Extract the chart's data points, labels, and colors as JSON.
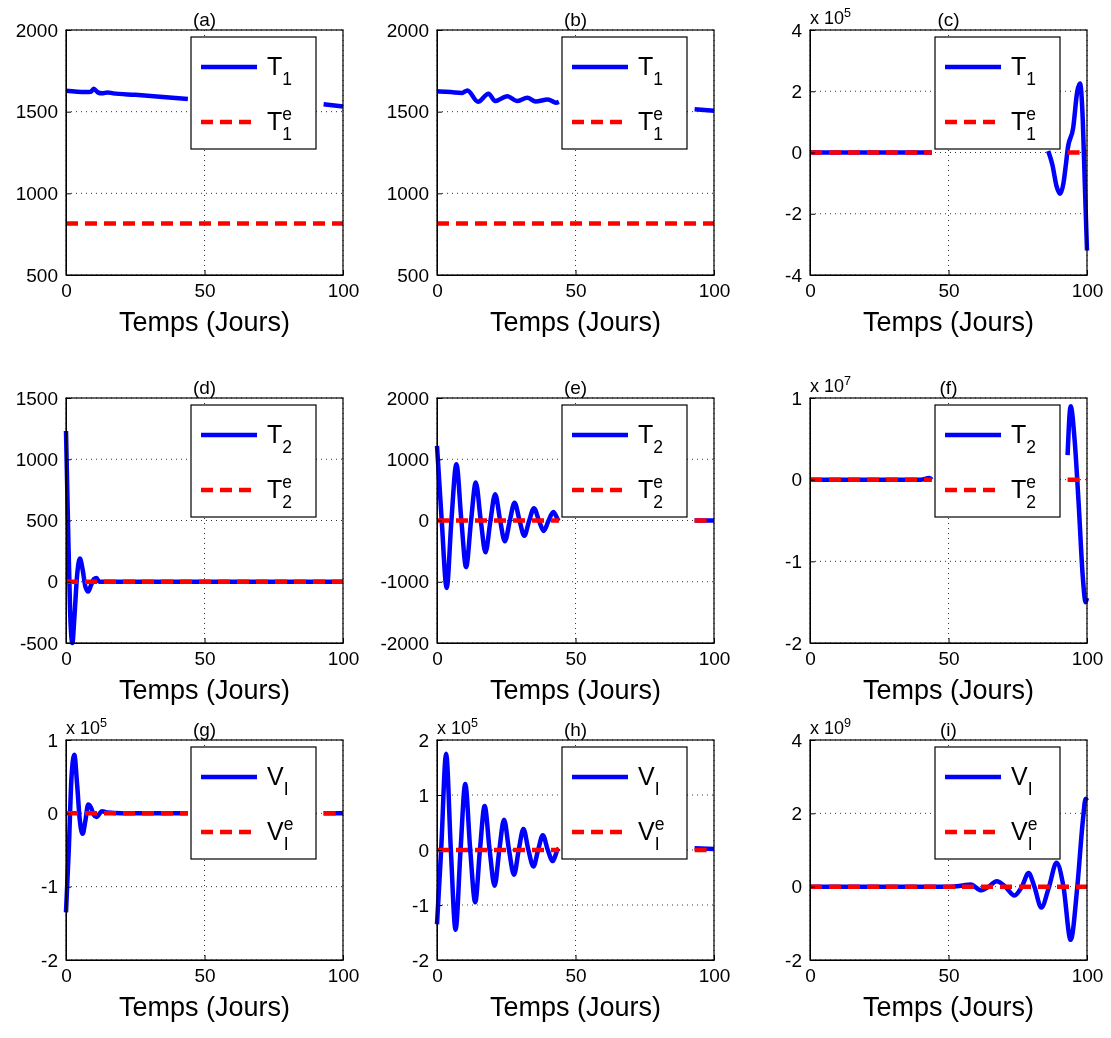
{
  "chart_data": [
    {
      "type": "line",
      "title": "(a)",
      "xlabel": "Temps (Jours)",
      "xlim": [
        0,
        100
      ],
      "xticks": [
        0,
        50,
        100
      ],
      "ylim": [
        500,
        2000
      ],
      "yticks": [
        500,
        1000,
        1500,
        2000
      ],
      "grid": true,
      "legend": "top right",
      "series": [
        {
          "name": "T$_{1}$",
          "color": "#0000ff",
          "line_style": "solid",
          "x": [
            0,
            7,
            9,
            10,
            11.5,
            13,
            15,
            17,
            25,
            35,
            44,
            70,
            93,
            100
          ],
          "values": [
            1628,
            1620,
            1622,
            1640,
            1618,
            1612,
            1618,
            1612,
            1603,
            1590,
            1577,
            null,
            1545,
            1532
          ]
        },
        {
          "name": "T$^{e}$$_{1}$",
          "color": "#ff0000",
          "line_style": "dashed",
          "x": [
            0,
            100
          ],
          "values": [
            815,
            815
          ]
        }
      ]
    },
    {
      "type": "line",
      "title": "(b)",
      "xlabel": "Temps (Jours)",
      "xlim": [
        0,
        100
      ],
      "xticks": [
        0,
        50,
        100
      ],
      "ylim": [
        500,
        2000
      ],
      "yticks": [
        500,
        1000,
        1500,
        2000
      ],
      "grid": true,
      "legend": "top right",
      "series": [
        {
          "name": "T$_{1}$",
          "color": "#0000ff",
          "line_style": "solid",
          "x": [
            0,
            5,
            9,
            11,
            14.8,
            18.6,
            21,
            25.4,
            28.8,
            32.6,
            35.6,
            40,
            43,
            44,
            70,
            93,
            100
          ],
          "values": [
            1625,
            1620,
            1615,
            1630,
            1560,
            1610,
            1565,
            1595,
            1565,
            1585,
            1562,
            1575,
            1555,
            1560,
            null,
            1515,
            1505
          ]
        },
        {
          "name": "T$^{e}$$_{1}$",
          "color": "#ff0000",
          "line_style": "dashed",
          "x": [
            0,
            100
          ],
          "values": [
            815,
            815
          ]
        }
      ]
    },
    {
      "type": "line",
      "title": "(c)",
      "xlabel": "Temps (Jours)",
      "xlim": [
        0,
        100
      ],
      "xticks": [
        0,
        50,
        100
      ],
      "ylim": [
        -4,
        4
      ],
      "yticks": [
        -4,
        -2,
        0,
        2,
        4
      ],
      "grid": true,
      "legend": "top right",
      "annotations": [
        "x 10$^{5}$"
      ],
      "series": [
        {
          "name": "T$_{1}$",
          "color": "#0000ff",
          "line_style": "solid",
          "x": [
            0,
            44,
            70,
            86,
            87.5,
            89,
            90.3,
            91.5,
            92.5,
            93,
            95,
            96.5,
            97.5,
            98.5,
            99.2,
            100
          ],
          "values": [
            0,
            0,
            null,
            0.05,
            -0.4,
            -1.1,
            -1.35,
            -1,
            -0.3,
            0.1,
            0.8,
            2,
            2.25,
            1,
            -1,
            -3.2
          ]
        },
        {
          "name": "T$^{e}$$_{1}$",
          "color": "#ff0000",
          "line_style": "dashed",
          "x": [
            0,
            44,
            70,
            93,
            100
          ],
          "values": [
            0,
            0,
            null,
            0,
            0
          ]
        }
      ]
    },
    {
      "type": "line",
      "title": "(d)",
      "xlabel": "Temps (Jours)",
      "xlim": [
        0,
        100
      ],
      "xticks": [
        0,
        50,
        100
      ],
      "ylim": [
        -500,
        1500
      ],
      "yticks": [
        -500,
        0,
        500,
        1000,
        1500
      ],
      "grid": true,
      "legend": "top right",
      "series": [
        {
          "name": "T$_{2}$",
          "color": "#0000ff",
          "line_style": "solid",
          "x": [
            0,
            0.7,
            1.5,
            2.3,
            3,
            4,
            5,
            6,
            7,
            8,
            9,
            10,
            11,
            12,
            13,
            15,
            100
          ],
          "values": [
            1230,
            500,
            -250,
            -500,
            -300,
            50,
            190,
            100,
            -40,
            -80,
            -30,
            20,
            30,
            0,
            0,
            0,
            0
          ]
        },
        {
          "name": "T$^{e}$$_{2}$",
          "color": "#ff0000",
          "line_style": "dashed",
          "x": [
            0,
            100
          ],
          "values": [
            0,
            0
          ]
        }
      ]
    },
    {
      "type": "line",
      "title": "(e)",
      "xlabel": "Temps (Jours)",
      "xlim": [
        0,
        100
      ],
      "xticks": [
        0,
        50,
        100
      ],
      "ylim": [
        -2000,
        2000
      ],
      "yticks": [
        -2000,
        -1000,
        0,
        1000,
        2000
      ],
      "grid": true,
      "legend": "top right",
      "series": [
        {
          "name": "T$_{2}$",
          "color": "#0000ff",
          "line_style": "solid",
          "x": [
            0,
            1.7,
            3.5,
            5.2,
            7,
            8.8,
            10.5,
            12.3,
            14,
            15.8,
            17.5,
            19.3,
            21,
            22.8,
            24.5,
            26.3,
            28,
            29.8,
            31.5,
            33.3,
            35,
            36.8,
            38.5,
            40.3,
            42,
            43.8,
            44,
            70,
            93,
            100
          ],
          "values": [
            1220,
            0,
            -1100,
            0,
            920,
            0,
            -760,
            0,
            620,
            0,
            -520,
            0,
            430,
            0,
            -340,
            0,
            290,
            0,
            -250,
            0,
            200,
            0,
            -170,
            0,
            140,
            0,
            -10,
            null,
            0,
            0
          ]
        },
        {
          "name": "T$^{e}$$_{2}$",
          "color": "#ff0000",
          "line_style": "dashed",
          "x": [
            0,
            44,
            70,
            93,
            100
          ],
          "values": [
            0,
            0,
            null,
            0,
            0
          ]
        }
      ]
    },
    {
      "type": "line",
      "title": "(f)",
      "xlabel": "Temps (Jours)",
      "xlim": [
        0,
        100
      ],
      "xticks": [
        0,
        50,
        100
      ],
      "ylim": [
        -2,
        1
      ],
      "yticks": [
        -2,
        -1,
        0,
        1
      ],
      "grid": true,
      "legend": "top right",
      "annotations": [
        "x 10$^{7}$"
      ],
      "series": [
        {
          "name": "T$_{2}$",
          "color": "#0000ff",
          "line_style": "solid",
          "x": [
            0,
            40,
            43,
            44,
            70,
            93,
            94.1,
            95.5,
            97,
            98.5,
            99.5,
            100
          ],
          "values": [
            0,
            0,
            0.02,
            0,
            null,
            0.3,
            0.9,
            0.5,
            -0.3,
            -1.2,
            -1.5,
            -1.45
          ]
        },
        {
          "name": "T$^{e}$$_{2}$",
          "color": "#ff0000",
          "line_style": "dashed",
          "x": [
            0,
            44,
            70,
            93,
            100
          ],
          "values": [
            0,
            0,
            null,
            0,
            0
          ]
        }
      ]
    },
    {
      "type": "line",
      "title": "(g)",
      "xlabel": "Temps (Jours)",
      "xlim": [
        0,
        100
      ],
      "xticks": [
        0,
        50,
        100
      ],
      "ylim": [
        -2,
        1
      ],
      "yticks": [
        -2,
        -1,
        0,
        1
      ],
      "grid": true,
      "legend": "top right",
      "annotations": [
        "x 10$^{5}$"
      ],
      "series": [
        {
          "name": "V$_{I}$",
          "color": "#0000ff",
          "line_style": "solid",
          "x": [
            0,
            1,
            2,
            3,
            4,
            5,
            6,
            7,
            8,
            9,
            10,
            11,
            13,
            15,
            20,
            44,
            70,
            93,
            100
          ],
          "values": [
            -1.35,
            -0.5,
            0.5,
            0.8,
            0.4,
            -0.1,
            -0.28,
            -0.1,
            0.12,
            0.08,
            -0.02,
            -0.05,
            0.03,
            0.01,
            0,
            0,
            null,
            0,
            0
          ]
        },
        {
          "name": "V$^{e}$$_{I}$",
          "color": "#ff0000",
          "line_style": "dashed",
          "x": [
            0,
            44,
            70,
            93,
            100
          ],
          "values": [
            0,
            0,
            null,
            0,
            0
          ]
        }
      ]
    },
    {
      "type": "line",
      "title": "(h)",
      "xlabel": "Temps (Jours)",
      "xlim": [
        0,
        100
      ],
      "xticks": [
        0,
        50,
        100
      ],
      "ylim": [
        -2,
        2
      ],
      "yticks": [
        -2,
        -1,
        0,
        1,
        2
      ],
      "grid": true,
      "legend": "top right",
      "annotations": [
        "x 10$^{5}$"
      ],
      "series": [
        {
          "name": "V$_{I}$",
          "color": "#0000ff",
          "line_style": "solid",
          "x": [
            0,
            1.5,
            3.3,
            5,
            6.7,
            8.5,
            10.2,
            12,
            13.8,
            15.5,
            17.2,
            19,
            20.8,
            22.5,
            24.2,
            26,
            27.8,
            29.5,
            31.2,
            33,
            34.8,
            36.5,
            38.2,
            40,
            41.8,
            43.5,
            44,
            70,
            93,
            100
          ],
          "values": [
            -1.35,
            0,
            1.75,
            0,
            -1.45,
            0,
            1.2,
            0,
            -0.95,
            0,
            0.8,
            0,
            -0.65,
            0,
            0.55,
            0,
            -0.45,
            0,
            0.38,
            0,
            -0.3,
            0,
            0.27,
            0,
            -0.2,
            0,
            0.03,
            null,
            0.03,
            0.02
          ]
        },
        {
          "name": "V$^{e}$$_{I}$",
          "color": "#ff0000",
          "line_style": "dashed",
          "x": [
            0,
            44,
            70,
            93,
            100
          ],
          "values": [
            0,
            0,
            null,
            0,
            0
          ]
        }
      ]
    },
    {
      "type": "line",
      "title": "(i)",
      "xlabel": "Temps (Jours)",
      "xlim": [
        0,
        100
      ],
      "xticks": [
        0,
        50,
        100
      ],
      "ylim": [
        -2,
        4
      ],
      "yticks": [
        -2,
        0,
        2,
        4
      ],
      "grid": true,
      "legend": "top right",
      "annotations": [
        "x 10$^{9}$"
      ],
      "series": [
        {
          "name": "V$_{I}$",
          "color": "#0000ff",
          "line_style": "solid",
          "x": [
            0,
            50,
            55,
            58,
            61.8,
            64.5,
            67.4,
            70.5,
            73.8,
            76.5,
            78.9,
            81,
            83.5,
            86.3,
            89,
            91.5,
            94.1,
            96.5,
            98.5,
            99.5,
            100
          ],
          "values": [
            0,
            0,
            0.03,
            0.06,
            -0.1,
            0,
            0.15,
            0,
            -0.24,
            0,
            0.37,
            0,
            -0.57,
            0,
            0.65,
            0,
            -1.45,
            0,
            1.8,
            2.4,
            2.35
          ]
        },
        {
          "name": "V$^{e}$$_{I}$",
          "color": "#ff0000",
          "line_style": "dashed",
          "x": [
            0,
            100
          ],
          "values": [
            0,
            0
          ]
        }
      ]
    }
  ]
}
